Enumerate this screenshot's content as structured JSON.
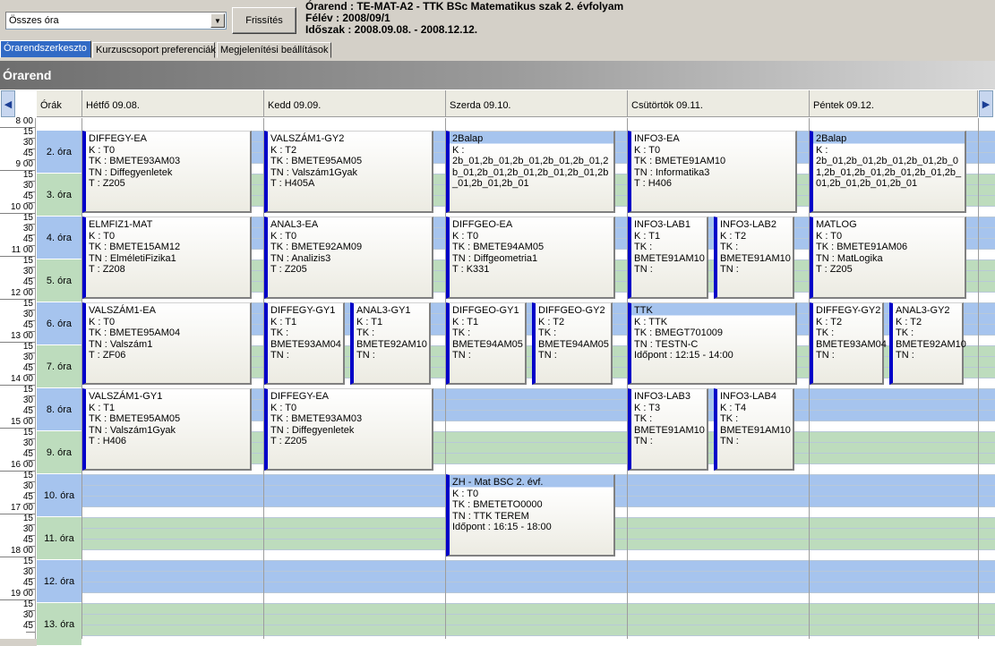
{
  "toolbar": {
    "filter_value": "Összes óra",
    "refresh_label": "Frissítés",
    "info_line1": "Órarend : TE-MAT-A2 - TTK BSc Matematikus szak 2. évfolyam",
    "info_line2": "Félév : 2008/09/1",
    "info_line3": "Időszak : 2008.09.08. - 2008.12.12."
  },
  "tabs": [
    {
      "label": "Órarendszerkeszto",
      "active": true
    },
    {
      "label": "Kurzuscsoport preferenciák",
      "active": false
    },
    {
      "label": "Megjelenítési beállítások",
      "active": false
    }
  ],
  "panel_title": "Órarend",
  "header": {
    "orak_label": "Órák",
    "days": [
      "Hétfő 09.08.",
      "Kedd 09.09.",
      "Szerda 09.10.",
      "Csütörtök 09.11.",
      "Péntek 09.12."
    ]
  },
  "times": [
    [
      "8 00",
      "15",
      "30",
      "45"
    ],
    [
      "9 00",
      "15",
      "30",
      "45"
    ],
    [
      "10 00",
      "15",
      "30",
      "45"
    ],
    [
      "11 00",
      "15",
      "30",
      "45"
    ],
    [
      "12 00",
      "15",
      "30",
      "45"
    ],
    [
      "13 00",
      "15",
      "30",
      "45"
    ],
    [
      "14 00",
      "15",
      "30",
      "45"
    ],
    [
      "15 00",
      "15",
      "30",
      "45"
    ],
    [
      "16 00",
      "15",
      "30",
      "45"
    ],
    [
      "17 00",
      "15",
      "30",
      "45"
    ],
    [
      "18 00",
      "15",
      "30",
      "45"
    ],
    [
      "19 00",
      "15",
      "30",
      "45"
    ]
  ],
  "periods": [
    "2. óra",
    "3. óra",
    "4. óra",
    "5. óra",
    "6. óra",
    "7. óra",
    "8. óra",
    "9. óra",
    "10. óra",
    "11. óra",
    "12. óra",
    "13. óra"
  ],
  "colors": {
    "period_blue": "#a6c4ee",
    "period_green": "#bddcbd",
    "event_border": "#0000c8"
  },
  "events": [
    {
      "day": 0,
      "slot": 0,
      "span": 2,
      "col": 0,
      "cols": 1,
      "lines": [
        "DIFFEGY-EA",
        "K : T0",
        "TK : BMETE93AM03",
        "TN : Diffegyenletek",
        "T : Z205"
      ]
    },
    {
      "day": 1,
      "slot": 0,
      "span": 2,
      "col": 0,
      "cols": 1,
      "lines": [
        "VALSZÁM1-GY2",
        "K : T2",
        "TK : BMETE95AM05",
        "TN : Valszám1Gyak",
        "T : H405A"
      ]
    },
    {
      "day": 2,
      "slot": 0,
      "span": 2,
      "col": 0,
      "cols": 1,
      "blue": true,
      "lines": [
        "2Balap",
        "K :",
        "2b_01,2b_01,2b_01,2b_01,2b_01,2b_01,2b_01,2b_01,2b_01,2b_01,2b_01,2b_01,2b_01"
      ]
    },
    {
      "day": 3,
      "slot": 0,
      "span": 2,
      "col": 0,
      "cols": 1,
      "lines": [
        "INFO3-EA",
        "K : T0",
        "TK : BMETE91AM10",
        "TN : Informatika3",
        "T : H406"
      ]
    },
    {
      "day": 4,
      "slot": 0,
      "span": 2,
      "col": 0,
      "cols": 1,
      "blue": true,
      "lines": [
        "2Balap",
        "K :",
        "2b_01,2b_01,2b_01,2b_01,2b_01,2b_01,2b_01,2b_01,2b_01,2b_01,2b_01,2b_01,2b_01"
      ]
    },
    {
      "day": 0,
      "slot": 2,
      "span": 2,
      "col": 0,
      "cols": 1,
      "lines": [
        "ELMFIZ1-MAT",
        "K : T0",
        "TK : BMETE15AM12",
        "TN : ElméletiFizika1",
        "T : Z208"
      ]
    },
    {
      "day": 1,
      "slot": 2,
      "span": 2,
      "col": 0,
      "cols": 1,
      "lines": [
        "ANAL3-EA",
        "K : T0",
        "TK : BMETE92AM09",
        "TN : Analizis3",
        "T : Z205"
      ]
    },
    {
      "day": 2,
      "slot": 2,
      "span": 2,
      "col": 0,
      "cols": 1,
      "lines": [
        "DIFFGEO-EA",
        "K : T0",
        "TK : BMETE94AM05",
        "TN : Diffgeometria1",
        "T : K331"
      ]
    },
    {
      "day": 3,
      "slot": 2,
      "span": 2,
      "col": 0,
      "cols": 2,
      "lines": [
        "INFO3-LAB1",
        "K : T1",
        "TK :",
        "BMETE91AM10",
        "TN :"
      ]
    },
    {
      "day": 3,
      "slot": 2,
      "span": 2,
      "col": 1,
      "cols": 2,
      "lines": [
        "INFO3-LAB2",
        "K : T2",
        "TK :",
        "BMETE91AM10",
        "TN :"
      ]
    },
    {
      "day": 4,
      "slot": 2,
      "span": 2,
      "col": 0,
      "cols": 1,
      "lines": [
        "MATLOG",
        "K : T0",
        "TK : BMETE91AM06",
        "TN : MatLogika",
        "T : Z205"
      ]
    },
    {
      "day": 0,
      "slot": 4,
      "span": 2,
      "col": 0,
      "cols": 1,
      "lines": [
        "VALSZÁM1-EA",
        "K : T0",
        "TK : BMETE95AM04",
        "TN : Valszám1",
        "T : ZF06"
      ]
    },
    {
      "day": 1,
      "slot": 4,
      "span": 2,
      "col": 0,
      "cols": 2,
      "lines": [
        "DIFFEGY-GY1",
        "K : T1",
        "TK :",
        "BMETE93AM04",
        "TN :"
      ]
    },
    {
      "day": 1,
      "slot": 4,
      "span": 2,
      "col": 1,
      "cols": 2,
      "lines": [
        "ANAL3-GY1",
        "K : T1",
        "TK :",
        "BMETE92AM10",
        "TN :"
      ]
    },
    {
      "day": 2,
      "slot": 4,
      "span": 2,
      "col": 0,
      "cols": 2,
      "lines": [
        "DIFFGEO-GY1",
        "K : T1",
        "TK :",
        "BMETE94AM05",
        "TN :"
      ]
    },
    {
      "day": 2,
      "slot": 4,
      "span": 2,
      "col": 1,
      "cols": 2,
      "lines": [
        "DIFFGEO-GY2",
        "K : T2",
        "TK :",
        "BMETE94AM05",
        "TN :"
      ]
    },
    {
      "day": 3,
      "slot": 4,
      "span": 2,
      "col": 0,
      "cols": 1,
      "blue": true,
      "lines": [
        "TTK",
        "K : TTK",
        "TK : BMEGT701009",
        "TN : TESTN-C",
        "Időpont : 12:15 - 14:00"
      ]
    },
    {
      "day": 4,
      "slot": 4,
      "span": 2,
      "col": 0,
      "cols": 2,
      "lines": [
        "DIFFEGY-GY2",
        "K : T2",
        "TK :",
        "BMETE93AM04",
        "TN :"
      ]
    },
    {
      "day": 4,
      "slot": 4,
      "span": 2,
      "col": 1,
      "cols": 2,
      "lines": [
        "ANAL3-GY2",
        "K : T2",
        "TK :",
        "BMETE92AM10",
        "TN :"
      ]
    },
    {
      "day": 0,
      "slot": 6,
      "span": 2,
      "col": 0,
      "cols": 1,
      "lines": [
        "VALSZÁM1-GY1",
        "K : T1",
        "TK : BMETE95AM05",
        "TN : Valszám1Gyak",
        "T : H406"
      ]
    },
    {
      "day": 1,
      "slot": 6,
      "span": 2,
      "col": 0,
      "cols": 1,
      "lines": [
        "DIFFEGY-EA",
        "K : T0",
        "TK : BMETE93AM03",
        "TN : Diffegyenletek",
        "T : Z205"
      ]
    },
    {
      "day": 3,
      "slot": 6,
      "span": 2,
      "col": 0,
      "cols": 2,
      "lines": [
        "INFO3-LAB3",
        "K : T3",
        "TK :",
        "BMETE91AM10",
        "TN :"
      ]
    },
    {
      "day": 3,
      "slot": 6,
      "span": 2,
      "col": 1,
      "cols": 2,
      "lines": [
        "INFO3-LAB4",
        "K : T4",
        "TK :",
        "BMETE91AM10",
        "TN :"
      ]
    },
    {
      "day": 2,
      "slot": 8,
      "span": 2,
      "col": 0,
      "cols": 1,
      "blue": true,
      "lines": [
        "ZH - Mat BSC 2. évf.",
        "K : T0",
        "TK : BMETETO0000",
        "TN : TTK TEREM",
        "Időpont : 16:15 - 18:00"
      ]
    }
  ]
}
